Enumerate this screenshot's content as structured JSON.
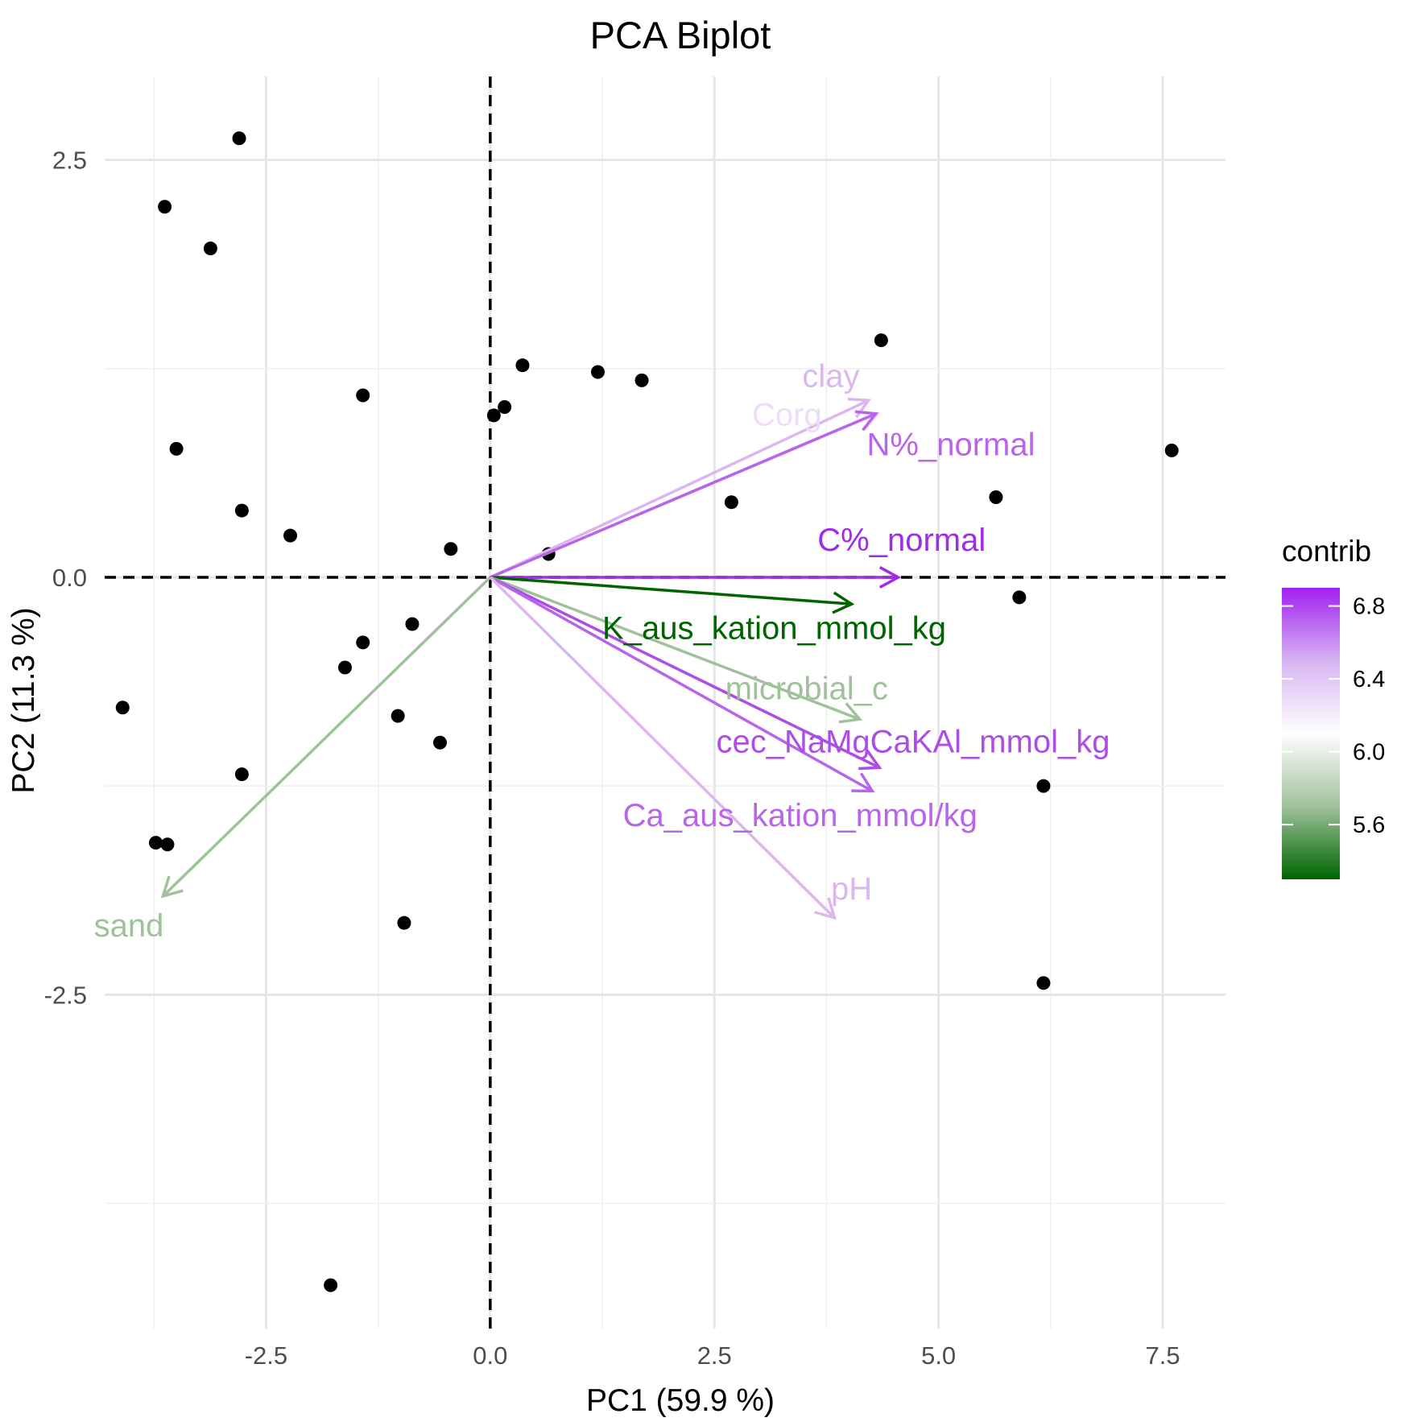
{
  "chart_data": {
    "type": "scatter",
    "title": "PCA Biplot",
    "xlabel": "PC1 (59.9 %)",
    "ylabel": "PC2 (11.3 %)",
    "xlim": [
      -4.3,
      8.2
    ],
    "ylim": [
      -4.5,
      3.0
    ],
    "x_ticks": [
      -2.5,
      0.0,
      2.5,
      5.0,
      7.5
    ],
    "x_tick_labels": [
      "-2.5",
      "0.0",
      "2.5",
      "5.0",
      "7.5"
    ],
    "y_ticks": [
      2.5,
      0.0,
      -2.5
    ],
    "y_tick_labels": [
      "2.5",
      "0.0",
      "-2.5"
    ],
    "grid": true,
    "reference_lines": {
      "x": 0,
      "y": 0,
      "style": "dashed"
    },
    "points": [
      {
        "x": -2.8,
        "y": 2.63
      },
      {
        "x": -3.63,
        "y": 2.22
      },
      {
        "x": -3.12,
        "y": 1.97
      },
      {
        "x": -3.5,
        "y": 0.77
      },
      {
        "x": -2.77,
        "y": 0.4
      },
      {
        "x": -2.23,
        "y": 0.25
      },
      {
        "x": -1.42,
        "y": 1.09
      },
      {
        "x": -0.44,
        "y": 0.17
      },
      {
        "x": 0.04,
        "y": 0.97
      },
      {
        "x": 0.16,
        "y": 1.02
      },
      {
        "x": 0.36,
        "y": 1.27
      },
      {
        "x": 0.65,
        "y": 0.14
      },
      {
        "x": 1.2,
        "y": 1.23
      },
      {
        "x": 1.69,
        "y": 1.18
      },
      {
        "x": 2.69,
        "y": 0.45
      },
      {
        "x": 4.36,
        "y": 1.42
      },
      {
        "x": 5.64,
        "y": 0.48
      },
      {
        "x": 7.6,
        "y": 0.76
      },
      {
        "x": 5.9,
        "y": -0.12
      },
      {
        "x": 6.17,
        "y": -1.25
      },
      {
        "x": 6.17,
        "y": -2.43
      },
      {
        "x": -0.87,
        "y": -0.28
      },
      {
        "x": -1.42,
        "y": -0.39
      },
      {
        "x": -1.62,
        "y": -0.54
      },
      {
        "x": -1.03,
        "y": -0.83
      },
      {
        "x": -0.56,
        "y": -0.99
      },
      {
        "x": -4.1,
        "y": -0.78
      },
      {
        "x": -2.77,
        "y": -1.18
      },
      {
        "x": -3.73,
        "y": -1.59
      },
      {
        "x": -3.6,
        "y": -1.6
      },
      {
        "x": -0.96,
        "y": -2.07
      },
      {
        "x": -1.78,
        "y": -4.24
      }
    ],
    "variables": [
      {
        "name": "clay",
        "x": 4.22,
        "y": 1.06,
        "contrib": 6.25,
        "color": "#dcb7ef",
        "lx": 3.48,
        "ly": 1.14
      },
      {
        "name": "Corg",
        "x": 4.32,
        "y": 0.98,
        "contrib": 6.2,
        "color": "#efdcf7",
        "lx": 2.92,
        "ly": 0.91,
        "partial": "Corg"
      },
      {
        "name": "N%_normal",
        "x": 4.3,
        "y": 0.98,
        "contrib": 6.6,
        "color": "#b865e8",
        "lx": 4.2,
        "ly": 0.73
      },
      {
        "name": "C%_normal",
        "x": 4.55,
        "y": 0.0,
        "contrib": 6.85,
        "color": "#a02ce8",
        "lx": 3.65,
        "ly": 0.16
      },
      {
        "name": "K_aus_kation_mmol_kg",
        "x": 4.03,
        "y": -0.16,
        "contrib": 5.4,
        "color": "#006400",
        "lx": 1.25,
        "ly": -0.37
      },
      {
        "name": "microbial_c",
        "x": 4.12,
        "y": -0.85,
        "contrib": 5.8,
        "color": "#9fc29b",
        "lx": 2.62,
        "ly": -0.73
      },
      {
        "name": "cec_NaMgCaKAl_mmol_kg",
        "x": 4.34,
        "y": -1.14,
        "contrib": 6.7,
        "color": "#ad4de6",
        "lx": 2.52,
        "ly": -1.05
      },
      {
        "name": "Ca_aus_kation_mmol/kg",
        "x": 4.26,
        "y": -1.28,
        "contrib": 6.6,
        "color": "#b865e8",
        "lx": 1.48,
        "ly": -1.49
      },
      {
        "name": "pH",
        "x": 3.84,
        "y": -2.04,
        "contrib": 6.3,
        "color": "#dcb7ef",
        "lx": 3.8,
        "ly": -1.93
      },
      {
        "name": "sand",
        "x": -3.65,
        "y": -1.91,
        "contrib": 5.8,
        "color": "#9fc29b",
        "lx": -4.42,
        "ly": -2.15
      }
    ],
    "legend": {
      "title": "contrib",
      "position": "right",
      "min": 5.3,
      "max": 6.9,
      "ticks": [
        6.8,
        6.4,
        6.0,
        5.6
      ],
      "tick_labels": [
        "6.8",
        "6.4",
        "6.0",
        "5.6"
      ],
      "colors": [
        "#a020f0",
        "#d6b4f2",
        "#ffffff",
        "#9fc29b",
        "#006400"
      ]
    }
  }
}
